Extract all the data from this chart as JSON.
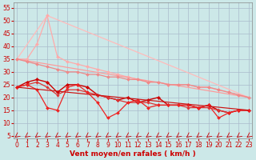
{
  "bg_color": "#cce8e8",
  "grid_color": "#aabbcc",
  "axis_label_color": "#cc0000",
  "xlabel": "Vent moyen/en rafales ( km/h )",
  "xlabel_fontsize": 6.5,
  "tick_fontsize": 5.5,
  "yticks": [
    5,
    10,
    15,
    20,
    25,
    30,
    35,
    40,
    45,
    50,
    55
  ],
  "xticks": [
    0,
    1,
    2,
    3,
    4,
    5,
    6,
    7,
    8,
    9,
    10,
    11,
    12,
    13,
    14,
    15,
    16,
    17,
    18,
    19,
    20,
    21,
    22,
    23
  ],
  "ylim": [
    4,
    57
  ],
  "xlim": [
    -0.3,
    23.3
  ],
  "lines": [
    {
      "x": [
        0,
        3,
        23
      ],
      "y": [
        35,
        52,
        20
      ],
      "color": "#ffbbbb",
      "lw": 0.9,
      "marker": null,
      "ms": 0
    },
    {
      "x": [
        0,
        1,
        2,
        3,
        4,
        5,
        6,
        7,
        8,
        9,
        10,
        11,
        12,
        13,
        14,
        15,
        16,
        17,
        18,
        19,
        20,
        21,
        22,
        23
      ],
      "y": [
        35,
        35,
        41,
        52,
        36,
        34,
        33,
        32,
        31,
        30,
        29,
        28,
        27,
        26,
        26,
        25,
        25,
        25,
        24,
        24,
        23,
        22,
        21,
        20
      ],
      "color": "#ffaaaa",
      "lw": 0.9,
      "marker": "D",
      "ms": 2.0
    },
    {
      "x": [
        0,
        23
      ],
      "y": [
        35,
        20
      ],
      "color": "#ff9999",
      "lw": 0.85,
      "marker": null,
      "ms": 0
    },
    {
      "x": [
        0,
        1,
        2,
        3,
        4,
        5,
        6,
        7,
        8,
        9,
        10,
        11,
        12,
        13,
        14,
        15,
        16,
        17,
        18,
        19,
        20,
        21,
        22,
        23
      ],
      "y": [
        35,
        34,
        33,
        32,
        31,
        30,
        30,
        29,
        29,
        28,
        28,
        27,
        27,
        26,
        26,
        25,
        25,
        25,
        24,
        24,
        23,
        22,
        21,
        20
      ],
      "color": "#ee8888",
      "lw": 0.9,
      "marker": "D",
      "ms": 2.0
    },
    {
      "x": [
        0,
        1,
        2,
        3,
        4,
        5,
        6,
        7,
        8,
        9,
        10,
        11,
        12,
        13,
        14,
        15,
        16,
        17,
        18,
        19,
        20,
        21,
        22,
        23
      ],
      "y": [
        24,
        26,
        27,
        26,
        22,
        25,
        25,
        24,
        21,
        20,
        19,
        20,
        18,
        19,
        20,
        17,
        17,
        17,
        16,
        17,
        15,
        14,
        15,
        15
      ],
      "color": "#cc0000",
      "lw": 1.0,
      "marker": "D",
      "ms": 2.2
    },
    {
      "x": [
        0,
        1,
        2,
        3,
        4,
        5,
        6,
        7,
        8,
        9,
        10,
        11,
        12,
        13,
        14,
        15,
        16,
        17,
        18,
        19,
        20,
        21,
        22,
        23
      ],
      "y": [
        24,
        25,
        26,
        24,
        21,
        23,
        23,
        22,
        21,
        20,
        19,
        18,
        18,
        18,
        17,
        17,
        17,
        16,
        16,
        16,
        15,
        14,
        15,
        15
      ],
      "color": "#dd3333",
      "lw": 0.9,
      "marker": "D",
      "ms": 1.8
    },
    {
      "x": [
        0,
        1,
        2,
        3,
        4,
        5,
        6,
        7,
        8,
        9,
        10,
        11,
        12,
        13,
        14,
        15,
        16,
        17,
        18,
        19,
        20,
        21,
        22,
        23
      ],
      "y": [
        24,
        25,
        23,
        16,
        15,
        24,
        25,
        22,
        18,
        12,
        14,
        18,
        19,
        16,
        17,
        17,
        17,
        17,
        16,
        17,
        12,
        14,
        15,
        15
      ],
      "color": "#ee2222",
      "lw": 0.9,
      "marker": "D",
      "ms": 2.0
    },
    {
      "x": [
        0,
        23
      ],
      "y": [
        24,
        15
      ],
      "color": "#cc1111",
      "lw": 0.85,
      "marker": null,
      "ms": 0
    }
  ],
  "arrow_color": "#cc0000"
}
